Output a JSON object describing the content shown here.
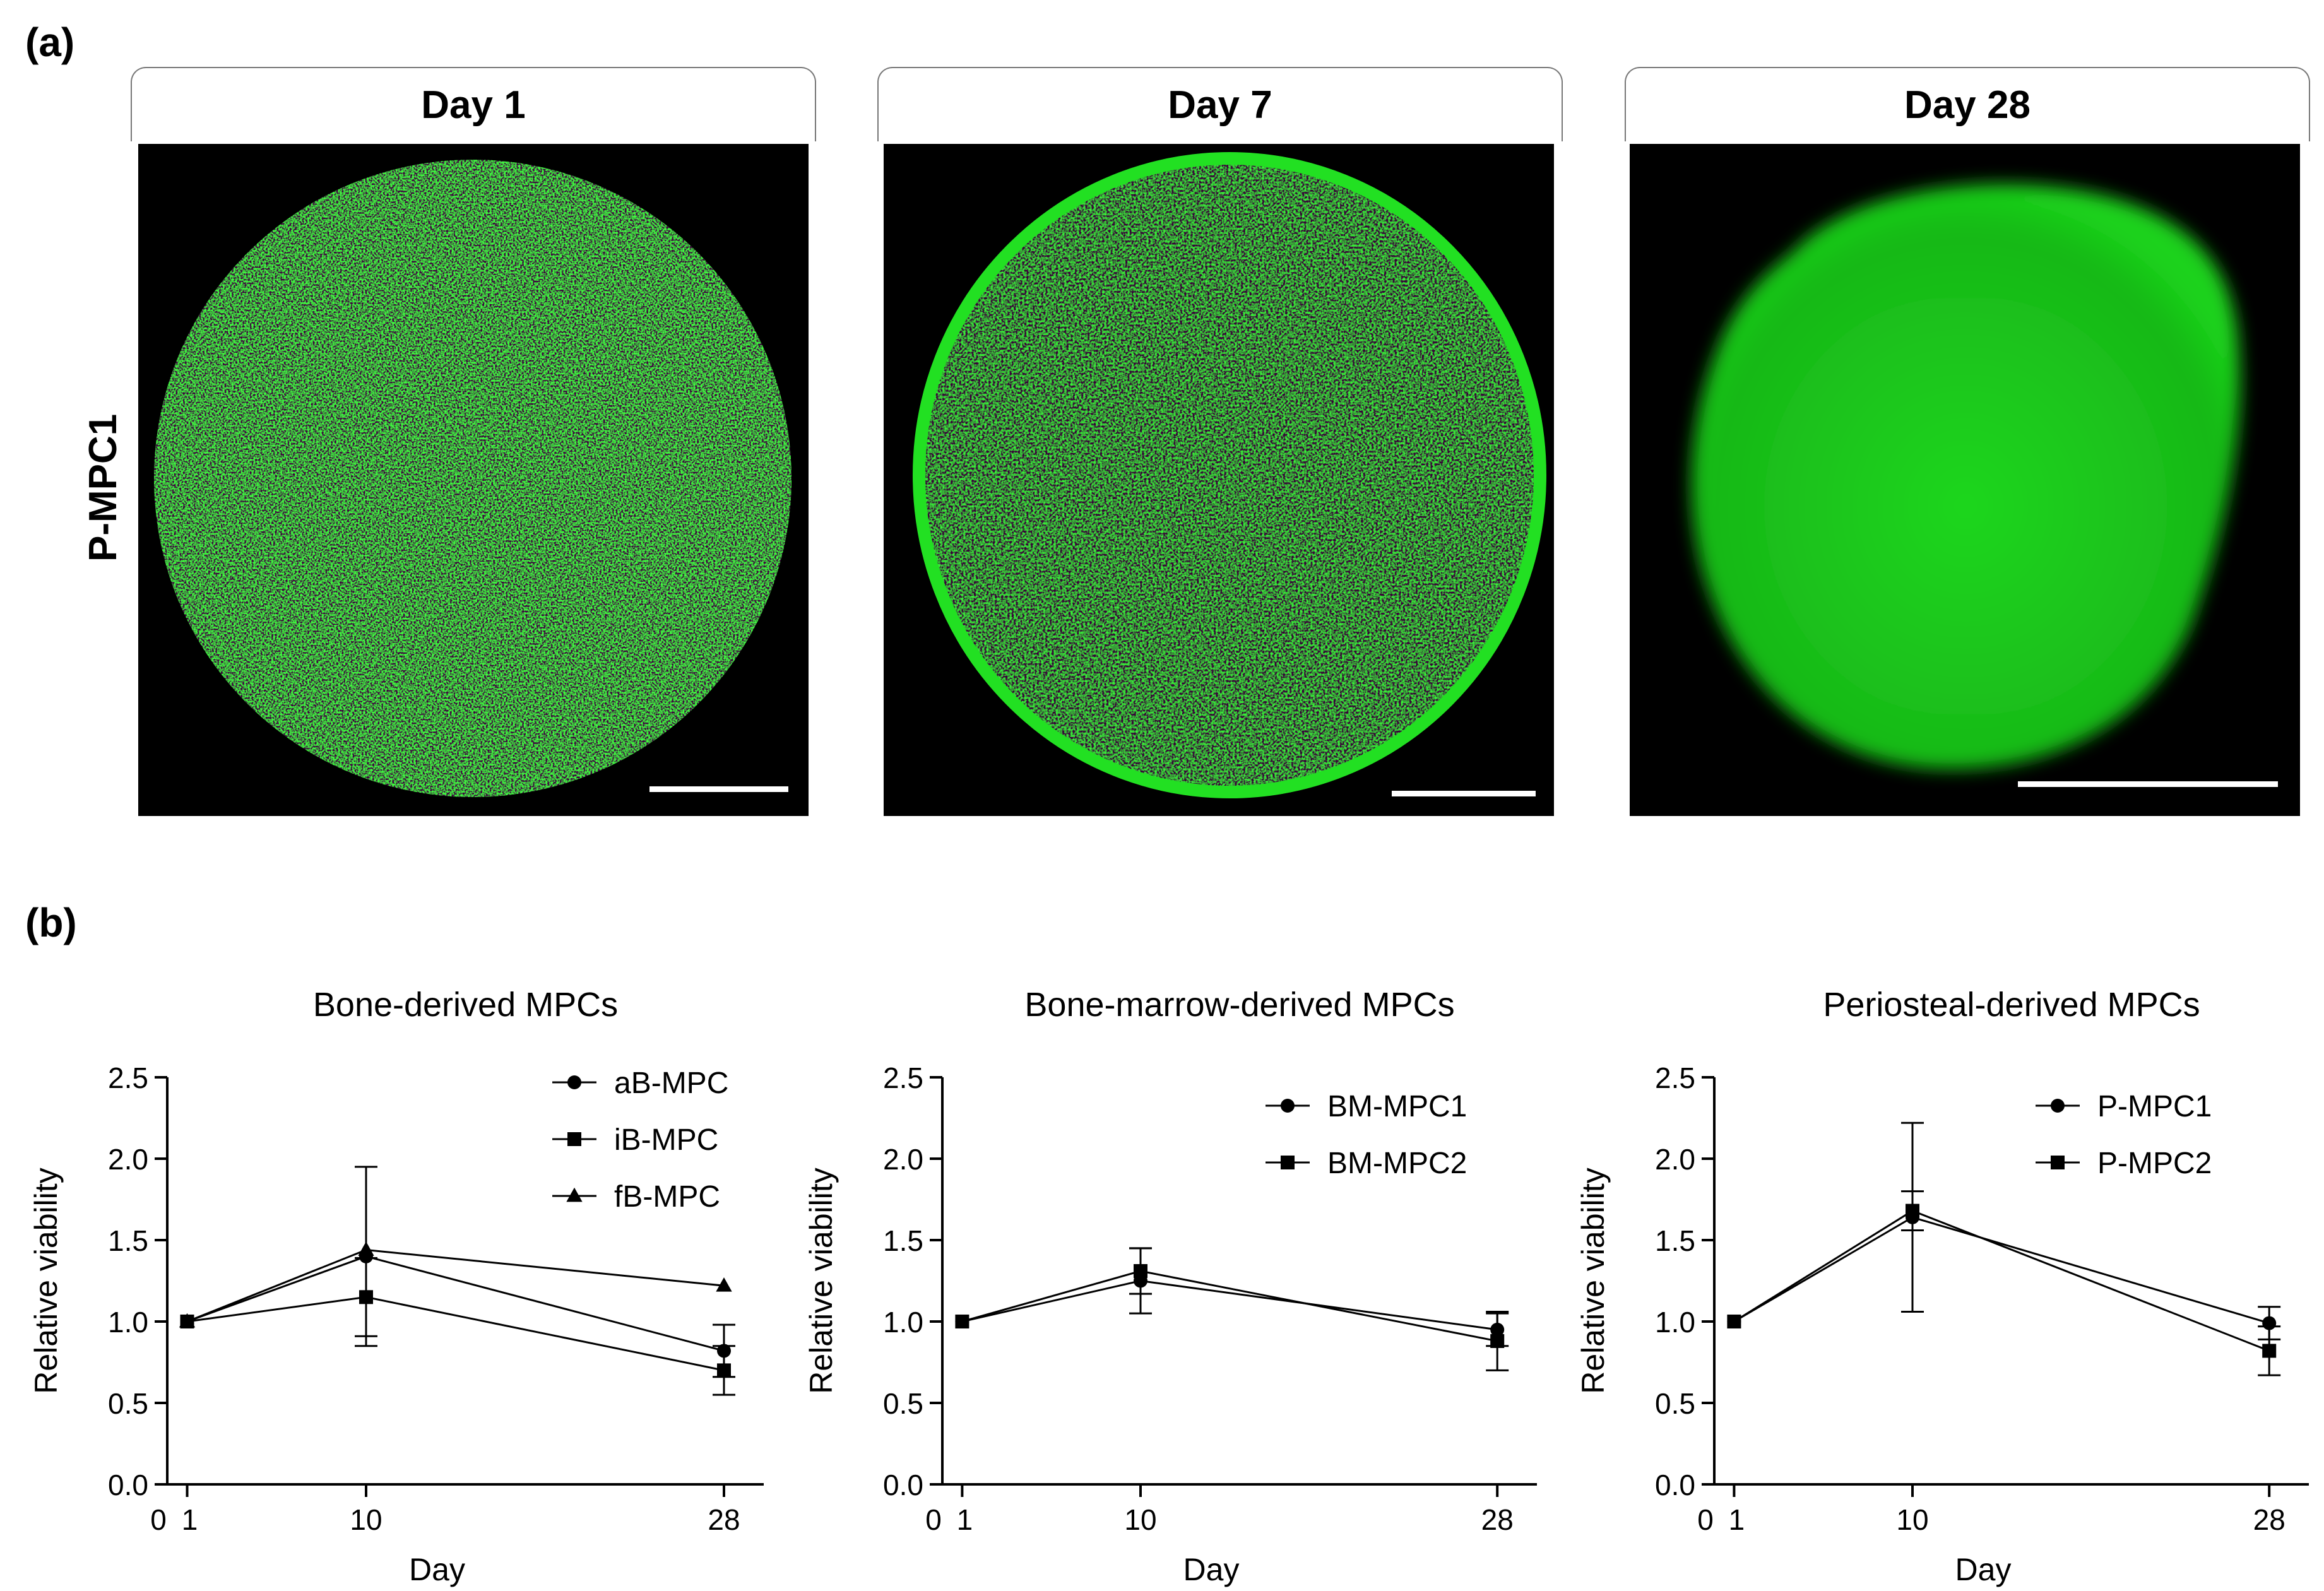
{
  "panel_a": {
    "label": "(a)",
    "row_label": "P-MPC1",
    "images": [
      {
        "title": "Day 1",
        "description": "green fluorescent spheroid, speckled texture"
      },
      {
        "title": "Day 7",
        "description": "green fluorescent spheroid, bright rim"
      },
      {
        "title": "Day 28",
        "description": "green fluorescent spheroid, diffuse glow"
      }
    ]
  },
  "panel_b": {
    "label": "(b)"
  },
  "colors": {
    "micro_bg": "#000000",
    "fluor": "#22dd22",
    "line": "#000000"
  },
  "chart_data": [
    {
      "type": "line",
      "title": "Bone-derived MPCs",
      "xlabel": "Day",
      "ylabel": "Relative viability",
      "xticks": [
        0,
        1,
        10,
        28
      ],
      "yticks": [
        "0.0",
        "0.5",
        "1.0",
        "1.5",
        "2.0",
        "2.5"
      ],
      "xlim": [
        0,
        30
      ],
      "ylim": [
        0,
        2.5
      ],
      "x": [
        1,
        10,
        28
      ],
      "series": [
        {
          "name": "aB-MPC",
          "marker": "circle",
          "values": [
            1.0,
            1.4,
            0.82
          ],
          "errors": [
            0,
            0.55,
            0.16
          ]
        },
        {
          "name": "iB-MPC",
          "marker": "square",
          "values": [
            1.0,
            1.15,
            0.7
          ],
          "errors": [
            0,
            0.24,
            0.15
          ]
        },
        {
          "name": "fB-MPC",
          "marker": "triangle",
          "values": [
            1.0,
            1.44,
            1.22
          ],
          "errors": [
            0,
            0,
            0
          ]
        }
      ]
    },
    {
      "type": "line",
      "title": "Bone-marrow-derived MPCs",
      "xlabel": "Day",
      "ylabel": "Relative viability",
      "xticks": [
        0,
        1,
        10,
        28
      ],
      "yticks": [
        "0.0",
        "0.5",
        "1.0",
        "1.5",
        "2.0",
        "2.5"
      ],
      "xlim": [
        0,
        30
      ],
      "ylim": [
        0,
        2.5
      ],
      "x": [
        1,
        10,
        28
      ],
      "series": [
        {
          "name": "BM-MPC1",
          "marker": "circle",
          "values": [
            1.0,
            1.25,
            0.95
          ],
          "errors": [
            0,
            0.2,
            0.1
          ]
        },
        {
          "name": "BM-MPC2",
          "marker": "square",
          "values": [
            1.0,
            1.31,
            0.88
          ],
          "errors": [
            0,
            0.14,
            0.18
          ]
        }
      ]
    },
    {
      "type": "line",
      "title": "Periosteal-derived MPCs",
      "xlabel": "Day",
      "ylabel": "Relative viability",
      "xticks": [
        0,
        1,
        10,
        28
      ],
      "yticks": [
        "0.0",
        "0.5",
        "1.0",
        "1.5",
        "2.0",
        "2.5"
      ],
      "xlim": [
        0,
        30
      ],
      "ylim": [
        0,
        2.5
      ],
      "x": [
        1,
        10,
        28
      ],
      "series": [
        {
          "name": "P-MPC1",
          "marker": "circle",
          "values": [
            1.0,
            1.64,
            0.99
          ],
          "errors": [
            0,
            0.58,
            0.1
          ]
        },
        {
          "name": "P-MPC2",
          "marker": "square",
          "values": [
            1.0,
            1.68,
            0.82
          ],
          "errors": [
            0,
            0.12,
            0.15
          ]
        }
      ]
    }
  ]
}
